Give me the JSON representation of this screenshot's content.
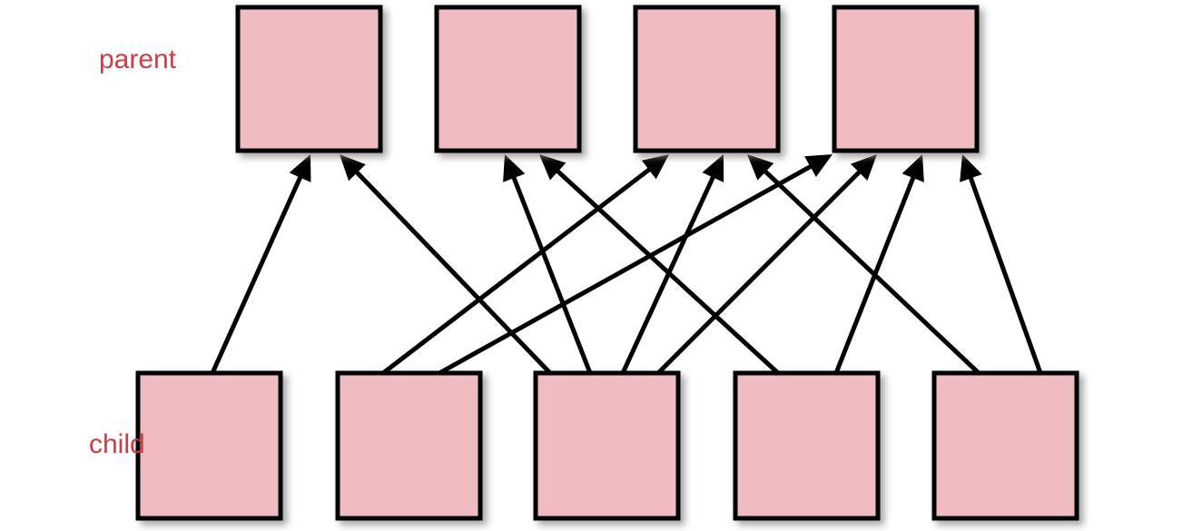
{
  "diagram": {
    "parent_label": "parent",
    "child_label": "child",
    "colors": {
      "box_fill": "#efbcc2",
      "box_stroke": "#000000",
      "edge": "#000000",
      "label": "#d33a43",
      "shadow": "#9a9a9a"
    },
    "parents": [
      "P1",
      "P2",
      "P3",
      "P4"
    ],
    "children": [
      "C1",
      "C2",
      "C3",
      "C4",
      "C5"
    ],
    "edges": [
      {
        "from": "C1",
        "to": "P1"
      },
      {
        "from": "C3",
        "to": "P1"
      },
      {
        "from": "C3",
        "to": "P2"
      },
      {
        "from": "C4",
        "to": "P2"
      },
      {
        "from": "C2",
        "to": "P3"
      },
      {
        "from": "C3",
        "to": "P3"
      },
      {
        "from": "C5",
        "to": "P3"
      },
      {
        "from": "C2",
        "to": "P4"
      },
      {
        "from": "C3",
        "to": "P4"
      },
      {
        "from": "C4",
        "to": "P4"
      },
      {
        "from": "C5",
        "to": "P4"
      }
    ]
  }
}
